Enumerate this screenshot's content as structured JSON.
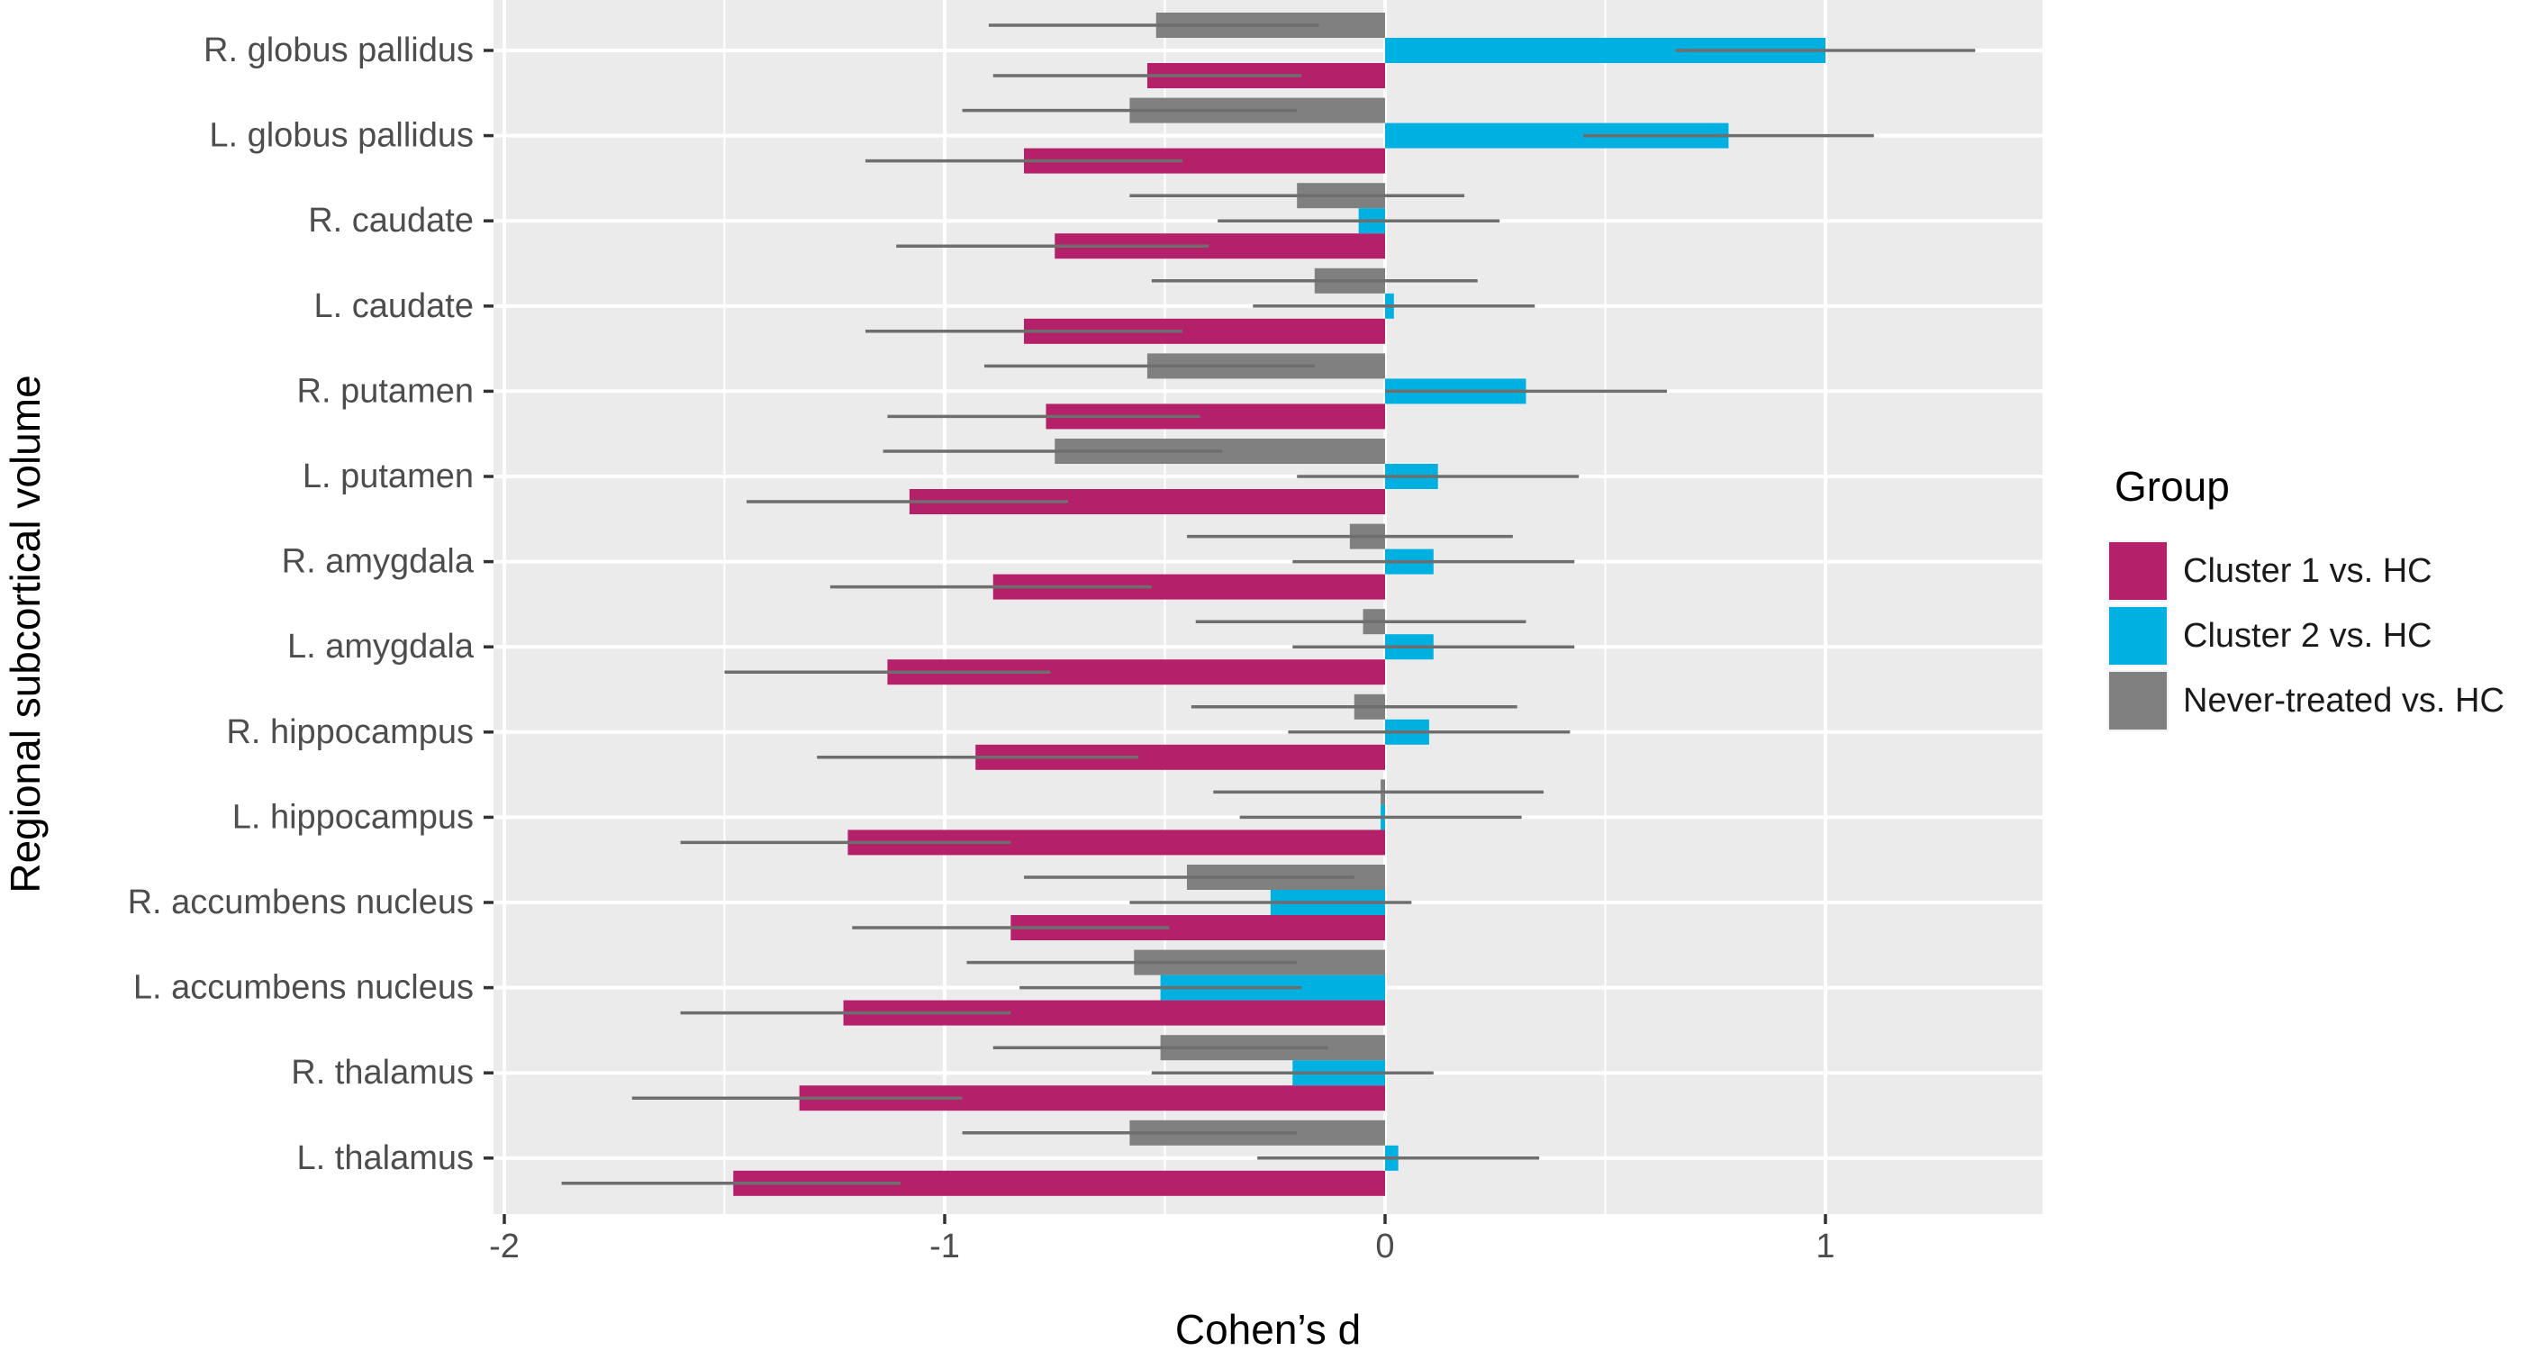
{
  "chart_data": {
    "type": "bar",
    "orientation": "horizontal",
    "xlabel": "Cohen’s d",
    "ylabel": "Regional subcortical volume",
    "xlim": [
      -2.0,
      1.5
    ],
    "xticks": [
      -2,
      -1,
      0,
      1
    ],
    "xtick_labels": [
      "-2",
      "-1",
      "0",
      "1"
    ],
    "grid": true,
    "legend_position": "right",
    "legend_title": "Group",
    "categories": [
      "R. globus pallidus",
      "L. globus pallidus",
      "R. caudate",
      "L. caudate",
      "R. putamen",
      "L. putamen",
      "R. amygdala",
      "L. amygdala",
      "R. hippocampus",
      "L. hippocampus",
      "R. accumbens nucleus",
      "L. accumbens nucleus",
      "R. thalamus",
      "L. thalamus"
    ],
    "series": [
      {
        "name": "Never-treated vs. HC",
        "color": "#808080",
        "values": [
          -0.52,
          -0.58,
          -0.2,
          -0.16,
          -0.54,
          -0.75,
          -0.08,
          -0.05,
          -0.07,
          -0.01,
          -0.45,
          -0.57,
          -0.51,
          -0.58
        ],
        "ci_low": [
          -0.9,
          -0.96,
          -0.58,
          -0.53,
          -0.91,
          -1.14,
          -0.45,
          -0.43,
          -0.44,
          -0.39,
          -0.82,
          -0.95,
          -0.89,
          -0.96
        ],
        "ci_high": [
          -0.15,
          -0.2,
          0.18,
          0.21,
          -0.16,
          -0.37,
          0.29,
          0.32,
          0.3,
          0.36,
          -0.07,
          -0.2,
          -0.13,
          -0.2
        ]
      },
      {
        "name": "Cluster 2 vs. HC",
        "color": "#00b0e0",
        "values": [
          1.0,
          0.78,
          -0.06,
          0.02,
          0.32,
          0.12,
          0.11,
          0.11,
          0.1,
          -0.01,
          -0.26,
          -0.51,
          -0.21,
          0.03
        ],
        "ci_low": [
          0.66,
          0.45,
          -0.38,
          -0.3,
          0.0,
          -0.2,
          -0.21,
          -0.21,
          -0.22,
          -0.33,
          -0.58,
          -0.83,
          -0.53,
          -0.29
        ],
        "ci_high": [
          1.34,
          1.11,
          0.26,
          0.34,
          0.64,
          0.44,
          0.43,
          0.43,
          0.42,
          0.31,
          0.06,
          -0.19,
          0.11,
          0.35
        ]
      },
      {
        "name": "Cluster 1 vs. HC",
        "color": "#b5206a",
        "values": [
          -0.54,
          -0.82,
          -0.75,
          -0.82,
          -0.77,
          -1.08,
          -0.89,
          -1.13,
          -0.93,
          -1.22,
          -0.85,
          -1.23,
          -1.33,
          -1.48
        ],
        "ci_low": [
          -0.89,
          -1.18,
          -1.11,
          -1.18,
          -1.13,
          -1.45,
          -1.26,
          -1.5,
          -1.29,
          -1.6,
          -1.21,
          -1.6,
          -1.71,
          -1.87
        ],
        "ci_high": [
          -0.19,
          -0.46,
          -0.4,
          -0.46,
          -0.42,
          -0.72,
          -0.53,
          -0.76,
          -0.56,
          -0.85,
          -0.49,
          -0.85,
          -0.96,
          -1.1
        ]
      }
    ],
    "legend_order": [
      "Cluster 1 vs. HC",
      "Cluster 2 vs. HC",
      "Never-treated vs. HC"
    ],
    "error_bar_color": "#6e6e6e",
    "panel_background": "#ebebeb",
    "grid_color": "#ffffff"
  }
}
